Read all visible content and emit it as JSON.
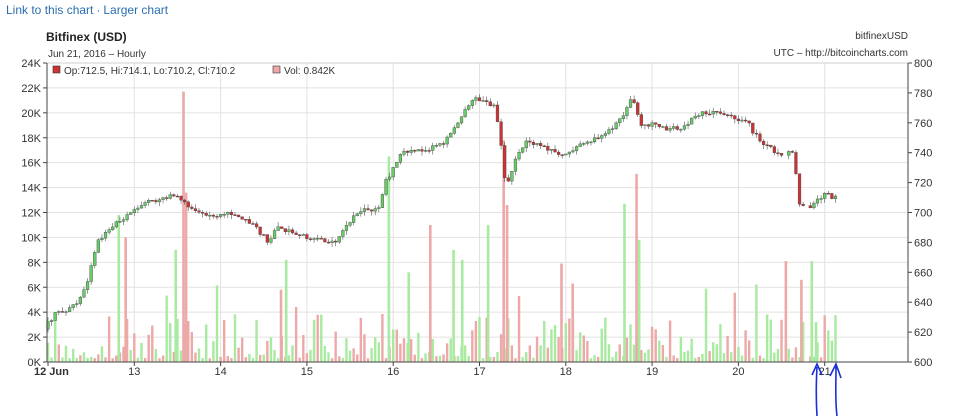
{
  "links": {
    "link_to_chart": "Link to this chart",
    "separator": "·",
    "larger_chart": "Larger chart"
  },
  "header": {
    "exchange_title": "Bitfinex (USD)",
    "date_line": "Jun 21, 2016 – Hourly",
    "symbol": "bitfinexUSD",
    "source": "UTC – http://bitcoincharts.com"
  },
  "legend": {
    "ohlc": "Op:712.5, Hi:714.1, Lo:710.2, Cl:710.2",
    "volume": "Vol: 0.842K"
  },
  "chart_data": {
    "type": "candlestick",
    "x_tick_labels": [
      "12 Jun",
      "13",
      "14",
      "15",
      "16",
      "17",
      "18",
      "19",
      "20",
      "21"
    ],
    "y_left_label_values": [
      "0K",
      "2K",
      "4K",
      "6K",
      "8K",
      "10K",
      "12K",
      "14K",
      "16K",
      "18K",
      "20K",
      "22K",
      "24K"
    ],
    "y_right_label_values": [
      "600",
      "620",
      "640",
      "660",
      "680",
      "700",
      "720",
      "740",
      "760",
      "780",
      "800"
    ],
    "left_axis_range": [
      0,
      24000
    ],
    "right_axis_range": [
      600,
      800
    ],
    "price_anchors": [
      [
        0.0,
        622
      ],
      [
        0.12,
        632
      ],
      [
        0.25,
        635
      ],
      [
        0.38,
        640
      ],
      [
        0.5,
        655
      ],
      [
        0.62,
        680
      ],
      [
        0.8,
        692
      ],
      [
        1.0,
        700
      ],
      [
        1.2,
        707
      ],
      [
        1.5,
        712
      ],
      [
        1.7,
        702
      ],
      [
        1.95,
        697
      ],
      [
        2.2,
        700
      ],
      [
        2.45,
        690
      ],
      [
        2.6,
        680
      ],
      [
        2.7,
        690
      ],
      [
        3.0,
        684
      ],
      [
        3.3,
        680
      ],
      [
        3.4,
        682
      ],
      [
        3.6,
        700
      ],
      [
        3.88,
        703
      ],
      [
        3.95,
        720
      ],
      [
        4.15,
        740
      ],
      [
        4.4,
        742
      ],
      [
        4.6,
        745
      ],
      [
        4.8,
        760
      ],
      [
        4.95,
        776
      ],
      [
        5.1,
        775
      ],
      [
        5.22,
        770
      ],
      [
        5.28,
        752
      ],
      [
        5.32,
        724
      ],
      [
        5.38,
        722
      ],
      [
        5.48,
        738
      ],
      [
        5.6,
        748
      ],
      [
        5.8,
        744
      ],
      [
        6.0,
        738
      ],
      [
        6.1,
        742
      ],
      [
        6.3,
        748
      ],
      [
        6.5,
        752
      ],
      [
        6.7,
        765
      ],
      [
        6.8,
        775
      ],
      [
        6.85,
        774
      ],
      [
        6.9,
        757
      ],
      [
        7.05,
        760
      ],
      [
        7.2,
        756
      ],
      [
        7.4,
        757
      ],
      [
        7.55,
        765
      ],
      [
        7.7,
        767
      ],
      [
        7.9,
        766
      ],
      [
        8.0,
        763
      ],
      [
        8.15,
        762
      ],
      [
        8.2,
        755
      ],
      [
        8.35,
        745
      ],
      [
        8.55,
        738
      ],
      [
        8.62,
        742
      ],
      [
        8.68,
        738
      ],
      [
        8.75,
        706
      ],
      [
        8.8,
        706
      ],
      [
        8.85,
        681
      ],
      [
        8.88,
        706
      ],
      [
        9.05,
        712
      ],
      [
        9.15,
        710
      ]
    ],
    "volume_spikes": [
      [
        0.82,
        11800,
        "green"
      ],
      [
        0.9,
        10000,
        "red"
      ],
      [
        1.57,
        21700,
        "red"
      ],
      [
        1.6,
        13600,
        "red"
      ],
      [
        1.48,
        9000,
        "green"
      ],
      [
        2.7,
        5800,
        "red"
      ],
      [
        2.76,
        8200,
        "green"
      ],
      [
        3.95,
        16500,
        "green"
      ],
      [
        4.18,
        7200,
        "green"
      ],
      [
        4.43,
        11000,
        "red"
      ],
      [
        4.7,
        9000,
        "green"
      ],
      [
        4.8,
        8200,
        "green"
      ],
      [
        5.1,
        11000,
        "green"
      ],
      [
        5.28,
        17800,
        "red"
      ],
      [
        5.32,
        12600,
        "red"
      ],
      [
        5.95,
        7900,
        "red"
      ],
      [
        6.08,
        6300,
        "red"
      ],
      [
        6.68,
        12700,
        "green"
      ],
      [
        6.82,
        15100,
        "red"
      ],
      [
        6.85,
        9800,
        "green"
      ],
      [
        8.55,
        8100,
        "red"
      ],
      [
        8.73,
        6600,
        "red"
      ],
      [
        8.85,
        8100,
        "green"
      ],
      [
        8.9,
        3200,
        "green"
      ]
    ],
    "gaps": [
      [
        8.52,
        8.56
      ],
      [
        8.78,
        8.83
      ]
    ]
  },
  "colors": {
    "up": "#66cc66",
    "down": "#cc3333",
    "vol_up": "#a8eaa0",
    "vol_down": "#eda8a8",
    "grid": "#e2e2e2",
    "axis": "#444444",
    "text": "#333333",
    "link": "#2a6eb0",
    "annotation": "#1a2fd6"
  }
}
